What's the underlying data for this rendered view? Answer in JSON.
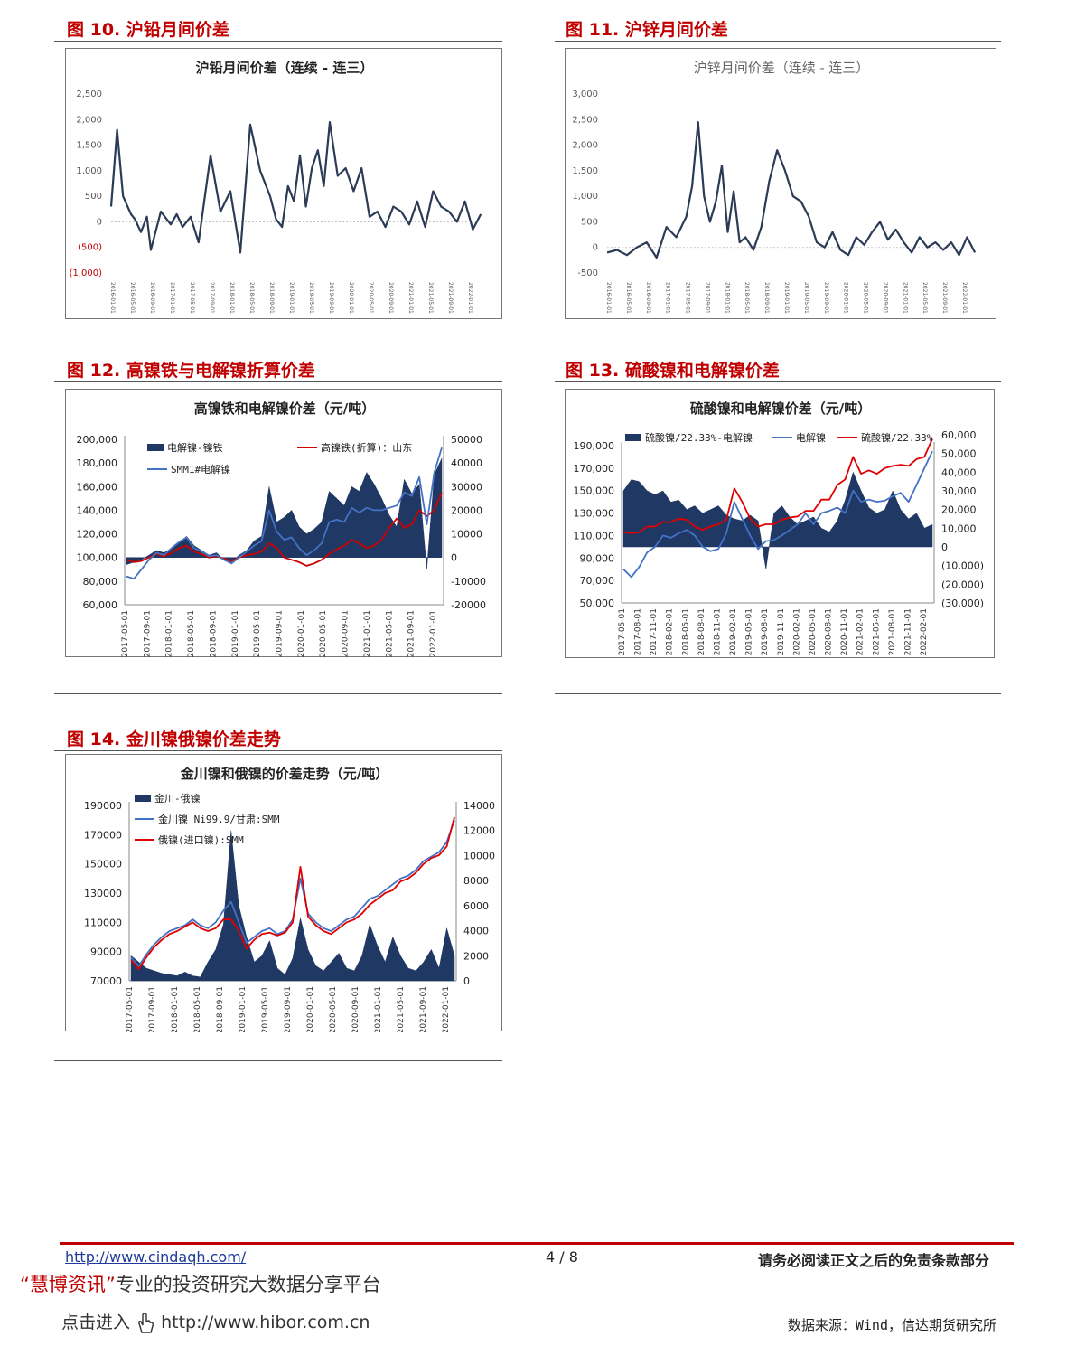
{
  "figures": [
    {
      "id": "fig10",
      "title": "图 10. 沪铅月间价差"
    },
    {
      "id": "fig11",
      "title": "图 11. 沪锌月间价差"
    },
    {
      "id": "fig12",
      "title": "图 12. 高镍铁与电解镍折算价差"
    },
    {
      "id": "fig13",
      "title": "图 13. 硫酸镍和电解镍价差"
    },
    {
      "id": "fig14",
      "title": "图 14. 金川镍俄镍价差走势"
    }
  ],
  "chart_data": [
    {
      "id": "fig10",
      "type": "line",
      "title": "沪铅月间价差（连续 - 连三）",
      "ylim": [
        -1000,
        2500
      ],
      "yticks": [
        "2,500",
        "2,000",
        "1,500",
        "1,000",
        "500",
        "0",
        "(500)",
        "(1,000)"
      ],
      "xticks": [
        "2016-01-01",
        "2016-05-01",
        "2016-09-01",
        "2017-01-01",
        "2017-05-01",
        "2017-09-01",
        "2018-01-01",
        "2018-05-01",
        "2018-09-01",
        "2019-01-01",
        "2019-05-01",
        "2019-09-01",
        "2020-01-01",
        "2020-05-01",
        "2020-09-01",
        "2021-01-01",
        "2021-05-01",
        "2021-09-01",
        "2022-01-01"
      ],
      "series": [
        {
          "color": "#2b3a55",
          "x": [
            0,
            0.3,
            0.6,
            1,
            1.2,
            1.5,
            1.8,
            2,
            2.5,
            3,
            3.3,
            3.6,
            4,
            4.4,
            5,
            5.5,
            6,
            6.5,
            7,
            7.5,
            8,
            8.3,
            8.6,
            8.9,
            9.2,
            9.5,
            9.8,
            10.1,
            10.4,
            10.7,
            11,
            11.4,
            11.8,
            12.2,
            12.6,
            13,
            13.4,
            13.8,
            14.2,
            14.6,
            15,
            15.4,
            15.8,
            16.2,
            16.6,
            17,
            17.4,
            17.8,
            18.2,
            18.6
          ],
          "values": [
            300,
            1800,
            500,
            150,
            50,
            -200,
            100,
            -550,
            200,
            -50,
            150,
            -100,
            100,
            -400,
            1300,
            200,
            600,
            -600,
            1900,
            1000,
            500,
            50,
            -100,
            700,
            400,
            1300,
            300,
            1050,
            1400,
            700,
            1950,
            900,
            1050,
            600,
            1050,
            100,
            200,
            -100,
            300,
            200,
            -50,
            400,
            -100,
            600,
            300,
            200,
            0,
            400,
            -150,
            150
          ]
        }
      ]
    },
    {
      "id": "fig11",
      "type": "line",
      "title": "沪锌月间价差（连续 - 连三）",
      "ylim": [
        -500,
        3000
      ],
      "yticks": [
        "3,000",
        "2,500",
        "2,000",
        "1,500",
        "1,000",
        "500",
        "0",
        "-500"
      ],
      "xticks": [
        "2016-01-01",
        "2016-05-01",
        "2016-09-01",
        "2017-01-01",
        "2017-05-01",
        "2017-09-01",
        "2018-01-01",
        "2018-05-01",
        "2018-09-01",
        "2019-01-01",
        "2019-05-01",
        "2019-09-01",
        "2020-01-01",
        "2020-05-01",
        "2020-09-01",
        "2021-01-01",
        "2021-05-01",
        "2021-09-01",
        "2022-01-01"
      ],
      "series": [
        {
          "color": "#2b3a55",
          "x": [
            0,
            0.5,
            1,
            1.5,
            2,
            2.5,
            3,
            3.5,
            4,
            4.3,
            4.6,
            4.9,
            5.2,
            5.5,
            5.8,
            6.1,
            6.4,
            6.7,
            7,
            7.4,
            7.8,
            8.2,
            8.6,
            9,
            9.4,
            9.8,
            10.2,
            10.6,
            11,
            11.4,
            11.8,
            12.2,
            12.6,
            13,
            13.4,
            13.8,
            14.2,
            14.6,
            15,
            15.4,
            15.8,
            16.2,
            16.6,
            17,
            17.4,
            17.8,
            18.2,
            18.6
          ],
          "values": [
            -100,
            -50,
            -150,
            0,
            100,
            -200,
            400,
            200,
            600,
            1200,
            2450,
            1000,
            500,
            900,
            1600,
            300,
            1100,
            100,
            200,
            -50,
            400,
            1300,
            1900,
            1500,
            1000,
            900,
            600,
            100,
            0,
            300,
            -50,
            -150,
            200,
            50,
            300,
            500,
            150,
            350,
            100,
            -100,
            200,
            0,
            100,
            -50,
            100,
            -150,
            200,
            -100
          ]
        }
      ]
    },
    {
      "id": "fig12",
      "type": "bar",
      "title": "高镍铁和电解镍价差（元/吨）",
      "ylim": [
        60000,
        200000
      ],
      "y2lim": [
        -20000,
        50000
      ],
      "yticks": [
        "200,000",
        "180,000",
        "160,000",
        "140,000",
        "120,000",
        "100,000",
        "80,000",
        "60,000"
      ],
      "y2ticks": [
        "50000",
        "40000",
        "30000",
        "20000",
        "10000",
        "0",
        "-10000",
        "-20000"
      ],
      "xticks": [
        "2017-05-01",
        "2017-09-01",
        "2018-01-01",
        "2018-05-01",
        "2018-09-01",
        "2019-01-01",
        "2019-05-01",
        "2019-09-01",
        "2020-01-01",
        "2020-05-01",
        "2020-09-01",
        "2021-01-01",
        "2021-05-01",
        "2021-09-01",
        "2022-01-01"
      ],
      "legend": [
        "电解镍-镍铁",
        "高镍铁(折算)：山东",
        "SMM1#电解镍"
      ],
      "series": [
        {
          "name": "电解镍-镍铁",
          "color": "#1f3864",
          "axis": "right",
          "values": [
            -3000,
            -2000,
            -1000,
            1000,
            3000,
            2000,
            4000,
            6000,
            9000,
            5000,
            3000,
            1000,
            2000,
            -1000,
            -2000,
            1000,
            3000,
            7000,
            9000,
            30000,
            15000,
            17000,
            20000,
            13000,
            10000,
            12000,
            15000,
            28000,
            25000,
            22000,
            30000,
            28000,
            36000,
            31000,
            25000,
            18000,
            13000,
            33000,
            27000,
            31000,
            -5000,
            35000,
            42000
          ]
        },
        {
          "name": "高镍铁(折算)：山东",
          "color": "#d00000",
          "axis": "left",
          "values": [
            98000,
            96000,
            97000,
            100000,
            103000,
            101000,
            104000,
            108000,
            110000,
            105000,
            103000,
            100000,
            101000,
            99000,
            97000,
            100000,
            102000,
            103000,
            105000,
            112000,
            108000,
            100000,
            98000,
            96000,
            93000,
            95000,
            98000,
            103000,
            107000,
            110000,
            115000,
            112000,
            108000,
            110000,
            115000,
            125000,
            133000,
            125000,
            128000,
            140000,
            135000,
            140000,
            155000
          ]
        },
        {
          "name": "SMM1#电解镍",
          "color": "#4472c4",
          "axis": "left",
          "values": [
            84000,
            82000,
            90000,
            98000,
            104000,
            102000,
            108000,
            113000,
            117000,
            108000,
            105000,
            101000,
            102000,
            98000,
            95000,
            100000,
            105000,
            110000,
            114000,
            140000,
            122000,
            115000,
            117000,
            108000,
            102000,
            106000,
            112000,
            130000,
            132000,
            130000,
            142000,
            138000,
            142000,
            140000,
            140000,
            142000,
            144000,
            155000,
            152000,
            168000,
            128000,
            172000,
            193000
          ]
        }
      ]
    },
    {
      "id": "fig13",
      "type": "bar",
      "title": "硫酸镍和电解镍价差（元/吨）",
      "ylim": [
        50000,
        190000
      ],
      "y2lim": [
        -30000,
        60000
      ],
      "yticks": [
        "190,000",
        "170,000",
        "150,000",
        "130,000",
        "110,000",
        "90,000",
        "70,000",
        "50,000"
      ],
      "y2ticks": [
        "60,000",
        "50,000",
        "40,000",
        "30,000",
        "20,000",
        "10,000",
        "0",
        "(10,000)",
        "(20,000)",
        "(30,000)"
      ],
      "xticks": [
        "2017-05-01",
        "2017-08-01",
        "2017-11-01",
        "2018-02-01",
        "2018-05-01",
        "2018-08-01",
        "2018-11-01",
        "2019-02-01",
        "2019-05-01",
        "2019-08-01",
        "2019-11-01",
        "2020-02-01",
        "2020-05-01",
        "2020-08-01",
        "2020-11-01",
        "2021-02-01",
        "2021-05-01",
        "2021-08-01",
        "2021-11-01",
        "2022-02-01"
      ],
      "legend": [
        "硫酸镍/22.33%-电解镍",
        "电解镍",
        "硫酸镍/22.33%"
      ],
      "series": [
        {
          "name": "硫酸镍/22.33%-电解镍",
          "color": "#1f3864",
          "axis": "right",
          "values": [
            30000,
            36000,
            35000,
            30000,
            28000,
            30000,
            24000,
            25000,
            20000,
            22000,
            18000,
            20000,
            22000,
            17000,
            15000,
            14000,
            17000,
            14000,
            -12000,
            18000,
            22000,
            16000,
            12000,
            14000,
            16000,
            10000,
            8000,
            14000,
            25000,
            40000,
            30000,
            21000,
            18000,
            20000,
            30000,
            20000,
            15000,
            18000,
            10000,
            12000
          ]
        },
        {
          "name": "电解镍",
          "color": "#4472c4",
          "axis": "left",
          "values": [
            80000,
            73000,
            82000,
            95000,
            100000,
            110000,
            108000,
            112000,
            115000,
            110000,
            100000,
            96000,
            98000,
            112000,
            140000,
            125000,
            110000,
            98000,
            105000,
            106000,
            110000,
            115000,
            120000,
            130000,
            120000,
            130000,
            132000,
            135000,
            130000,
            150000,
            140000,
            142000,
            140000,
            141000,
            145000,
            148000,
            140000,
            155000,
            170000,
            185000
          ]
        },
        {
          "name": "硫酸镍/22.33%",
          "color": "#e00000",
          "axis": "left",
          "values": [
            113000,
            112000,
            113000,
            118000,
            118000,
            122000,
            122000,
            125000,
            124000,
            118000,
            115000,
            118000,
            120000,
            124000,
            152000,
            140000,
            125000,
            118000,
            120000,
            120000,
            124000,
            126000,
            127000,
            132000,
            132000,
            142000,
            142000,
            155000,
            160000,
            180000,
            165000,
            168000,
            165000,
            170000,
            172000,
            173000,
            172000,
            178000,
            180000,
            196000
          ]
        }
      ]
    },
    {
      "id": "fig14",
      "type": "bar",
      "title": "金川镍和俄镍的价差走势（元/吨）",
      "ylim": [
        70000,
        190000
      ],
      "y2lim": [
        0,
        14000
      ],
      "yticks": [
        "190000",
        "170000",
        "150000",
        "130000",
        "110000",
        "90000",
        "70000"
      ],
      "y2ticks": [
        "14000",
        "12000",
        "10000",
        "8000",
        "6000",
        "4000",
        "2000",
        "0"
      ],
      "xticks": [
        "2017-05-01",
        "2017-09-01",
        "2018-01-01",
        "2018-05-01",
        "2018-09-01",
        "2019-01-01",
        "2019-05-01",
        "2019-09-01",
        "2020-01-01",
        "2020-05-01",
        "2020-09-01",
        "2021-01-01",
        "2021-05-01",
        "2021-09-01",
        "2022-01-01"
      ],
      "legend": [
        "金川-俄镍",
        "金川镍 Ni99.9/甘肃:SMM",
        "俄镍(进口镍):SMM"
      ],
      "series": [
        {
          "name": "金川-俄镍",
          "color": "#1f3864",
          "axis": "right",
          "values": [
            2000,
            1500,
            1000,
            800,
            600,
            500,
            400,
            700,
            400,
            300,
            1500,
            2500,
            4500,
            12000,
            6000,
            3500,
            1500,
            2000,
            3200,
            1000,
            500,
            1800,
            5000,
            2500,
            1200,
            800,
            1500,
            2200,
            1000,
            800,
            2000,
            4500,
            2800,
            1500,
            3500,
            2000,
            1000,
            800,
            1500,
            2500,
            1000,
            4200,
            2000
          ]
        },
        {
          "name": "金川镍 Ni99.9/甘肃:SMM",
          "color": "#4472c4",
          "axis": "left",
          "values": [
            86000,
            80000,
            88000,
            95000,
            100000,
            104000,
            106000,
            108000,
            112000,
            108000,
            106000,
            110000,
            118000,
            124000,
            110000,
            96000,
            100000,
            104000,
            106000,
            102000,
            104000,
            112000,
            140000,
            116000,
            110000,
            106000,
            104000,
            108000,
            112000,
            114000,
            120000,
            126000,
            128000,
            132000,
            136000,
            140000,
            142000,
            146000,
            152000,
            155000,
            158000,
            165000,
            180000
          ]
        },
        {
          "name": "俄镍(进口镍):SMM",
          "color": "#e00000",
          "axis": "left",
          "values": [
            84000,
            78000,
            86000,
            93000,
            98000,
            102000,
            104000,
            107000,
            110000,
            106000,
            104000,
            106000,
            112000,
            112000,
            104000,
            92000,
            98000,
            102000,
            103000,
            101000,
            103000,
            110000,
            148000,
            114000,
            108000,
            104000,
            102000,
            106000,
            110000,
            112000,
            116000,
            122000,
            126000,
            130000,
            132000,
            138000,
            140000,
            144000,
            150000,
            154000,
            156000,
            162000,
            182000
          ]
        }
      ]
    }
  ],
  "footer": {
    "link": "http://www.cindaqh.com/",
    "page": "4 / 8",
    "notice": "请务必阅读正文之后的免责条款部分",
    "brand_quote_open": "“",
    "brand_name": "慧博资讯",
    "brand_quote_close": "”",
    "brand_tagline": "专业的投资研究大数据分享平台",
    "hibor_prefix": "点击进入",
    "hibor_url": "http://www.hibor.com.cn",
    "source": "数据来源：Wind，信达期货研究所"
  }
}
